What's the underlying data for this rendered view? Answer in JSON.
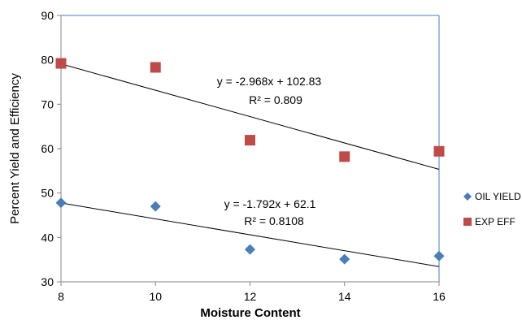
{
  "chart_data": {
    "type": "scatter",
    "xlabel": "Moisture Content",
    "ylabel": "Percent Yield and Efficiency",
    "xlim": [
      8,
      16
    ],
    "ylim": [
      30,
      90
    ],
    "x_ticks": [
      8,
      10,
      12,
      14,
      16
    ],
    "y_ticks": [
      30,
      40,
      50,
      60,
      70,
      80,
      90
    ],
    "x_tick_labels": [
      "8",
      "10",
      "12",
      "14",
      "16"
    ],
    "y_tick_labels": [
      "30",
      "40",
      "50",
      "60",
      "70",
      "80",
      "90"
    ],
    "grid": false,
    "legend_position": "right",
    "series": [
      {
        "name": "OIL YIELD",
        "marker": "diamond",
        "color": "#4A7EBB",
        "x": [
          8,
          10,
          12,
          14,
          16
        ],
        "y": [
          47.8,
          47.0,
          37.3,
          35.1,
          35.8
        ],
        "trendline": {
          "slope": -1.792,
          "intercept": 62.1
        },
        "equation": "y = -1.792x + 62.1",
        "r2": "R² = 0.8108"
      },
      {
        "name": "EXP EFF",
        "marker": "square",
        "color": "#BE4B48",
        "x": [
          8,
          10,
          12,
          14,
          16
        ],
        "y": [
          79.2,
          78.3,
          61.9,
          58.2,
          59.4
        ],
        "trendline": {
          "slope": -2.968,
          "intercept": 102.83
        },
        "equation": "y = -2.968x + 102.83",
        "r2": "R² = 0.809"
      }
    ]
  }
}
